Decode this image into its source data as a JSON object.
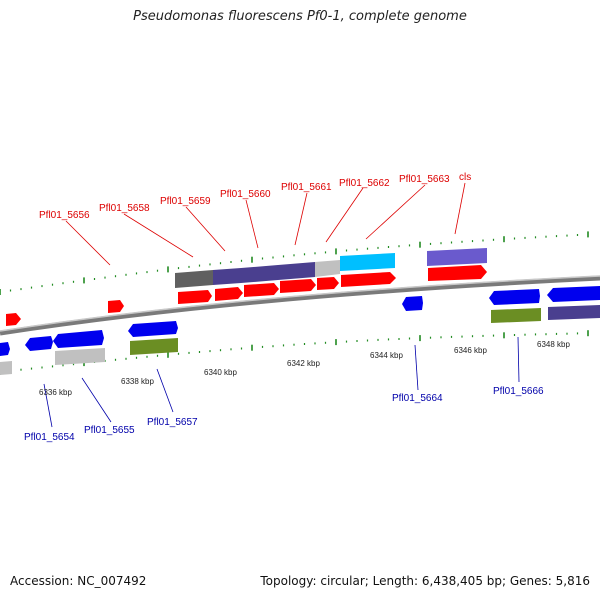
{
  "title": "Pseudomonas fluorescens Pf0-1, complete genome",
  "footer": {
    "accession": "Accession: NC_007492",
    "summary": "Topology: circular; Length: 6,438,405 bp; Genes: 5,816"
  },
  "colors": {
    "red": "#ff0000",
    "blue": "#0000ee",
    "olive": "#6b8e23",
    "light_gray": "#c0c0c0",
    "dark_gray": "#606060",
    "slate": "#4a3f8f",
    "periwinkle": "#6a5acd",
    "cyan": "#00bfff",
    "axis": "#808080",
    "tick": "#228b22",
    "label_top": "#dd0000",
    "label_bottom": "#0000aa"
  },
  "scale": {
    "labels": [
      "6336 kbp",
      "6338 kbp",
      "6340 kbp",
      "6342 kbp",
      "6344 kbp",
      "6346 kbp",
      "6348 kbp"
    ]
  },
  "top_labels": [
    "Pfl01_5656",
    "Pfl01_5658",
    "Pfl01_5659",
    "Pfl01_5660",
    "Pfl01_5661",
    "Pfl01_5662",
    "Pfl01_5663",
    "cls"
  ],
  "bottom_labels": [
    "Pfl01_5654",
    "Pfl01_5655",
    "Pfl01_5657",
    "Pfl01_5664",
    "Pfl01_5666"
  ]
}
